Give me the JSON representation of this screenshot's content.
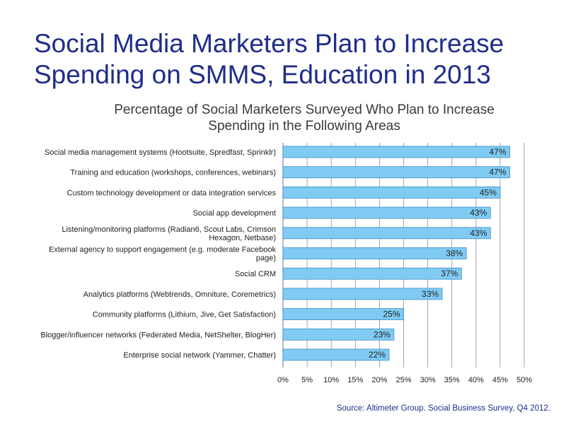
{
  "slide": {
    "title": "Social Media Marketers Plan to Increase\nSpending on SMMS, Education in 2013",
    "source": "Source: Altimeter Group. Social Business Survey, Q4 2012."
  },
  "colors": {
    "title": "#1f2d8a",
    "bar_fill": "#7fcbf3",
    "bar_stroke": "#3f8fc4",
    "grid": "#8a8ab0",
    "text": "#222222"
  },
  "chart_data": {
    "type": "bar",
    "orientation": "horizontal",
    "title": "Percentage of Social Marketers Surveyed Who Plan to Increase\nSpending in the Following Areas",
    "xlabel": "",
    "ylabel": "",
    "xlim": [
      0,
      50
    ],
    "x_ticks": [
      "0%",
      "5%",
      "10%",
      "15%",
      "20%",
      "25%",
      "30%",
      "35%",
      "40%",
      "45%",
      "50%"
    ],
    "grid": true,
    "legend": "none",
    "categories": [
      "Social media management systems (Hootsuite, Spredfast, Sprinklr)",
      "Training and education (workshops, conferences, webinars)",
      "Custom technology development or data integration services",
      "Social app development",
      "Listening/monitoring platforms (Radian6, Scout Labs, Crimson Hexagon, Netbase)",
      "External agency to support engagement (e.g. moderate Facebook page)",
      "Social CRM",
      "Analytics platforms (Webtrends, Omniture, Coremetrics)",
      "Community platforms (Lithium, Jive, Get Satisfaction)",
      "Blogger/influencer networks (Federated Media, NetShelter, BlogHer)",
      "Enterprise social network (Yammer, Chatter)"
    ],
    "values": [
      47,
      47,
      45,
      43,
      43,
      38,
      37,
      33,
      25,
      23,
      22
    ],
    "data_labels": [
      "47%",
      "47%",
      "45%",
      "43%",
      "43%",
      "38%",
      "37%",
      "33%",
      "25%",
      "23%",
      "22%"
    ]
  }
}
